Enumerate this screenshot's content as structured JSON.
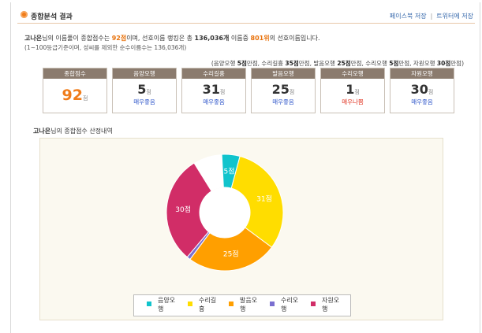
{
  "header": {
    "title": "종합분석 결과",
    "link_facebook": "페이스북 저장",
    "separator": "|",
    "link_twitter": "트위터에 저장"
  },
  "summary": {
    "name": "고나은",
    "part1": "님의 이름풀이 종합점수는 ",
    "score": "92점",
    "part2": "이며, 선호이름 랭킹은 총 ",
    "total_names": "136,036개",
    "part3": " 이름중 ",
    "rank": "801위",
    "part4": "의 선호이름입니다.",
    "note": "(1~100등급기준이며, 성씨를 제외한 순수이름수는 136,036개)"
  },
  "quota": {
    "t1": "(음양오행 ",
    "v1": "5점",
    "t2": "만점, 수리길흉 ",
    "v2": "35점",
    "t3": "만점, 발음오행 ",
    "v3": "25점",
    "t4": "만점, 수리오행 ",
    "v4": "5점",
    "t5": "만점, 자원오행 ",
    "v5": "30점",
    "t6": "만점)"
  },
  "score_boxes": [
    {
      "label": "종합점수",
      "value": "92",
      "unit": "점",
      "grade": ""
    },
    {
      "label": "음양오행",
      "value": "5",
      "unit": "점",
      "grade": "매우좋음"
    },
    {
      "label": "수리길흉",
      "value": "31",
      "unit": "점",
      "grade": "매우좋음"
    },
    {
      "label": "발음오행",
      "value": "25",
      "unit": "점",
      "grade": "매우좋음"
    },
    {
      "label": "수리오행",
      "value": "1",
      "unit": "점",
      "grade": "매우나쁨"
    },
    {
      "label": "자원오행",
      "value": "30",
      "unit": "점",
      "grade": "매우좋음"
    }
  ],
  "chart_section": {
    "name": "고나은",
    "title_rest": "님의 종합점수 산정내역"
  },
  "chart_data": {
    "type": "pie",
    "categories": [
      "음양오행",
      "수리길흉",
      "발음오행",
      "수리오행",
      "자원오행"
    ],
    "values": [
      5,
      31,
      25,
      1,
      30
    ],
    "max_values": [
      5,
      35,
      25,
      5,
      30
    ],
    "data_labels": [
      "5점",
      "31점",
      "25점",
      "",
      "30점"
    ],
    "colors": [
      "#11c4cc",
      "#ffdd00",
      "#ff9f00",
      "#7a6fd0",
      "#d12d67"
    ],
    "remainder_color": "#ffffff",
    "legend": [
      "음양오행",
      "수리길흉",
      "발음오행",
      "수리오행",
      "자원오행"
    ],
    "legend_position": "bottom"
  }
}
